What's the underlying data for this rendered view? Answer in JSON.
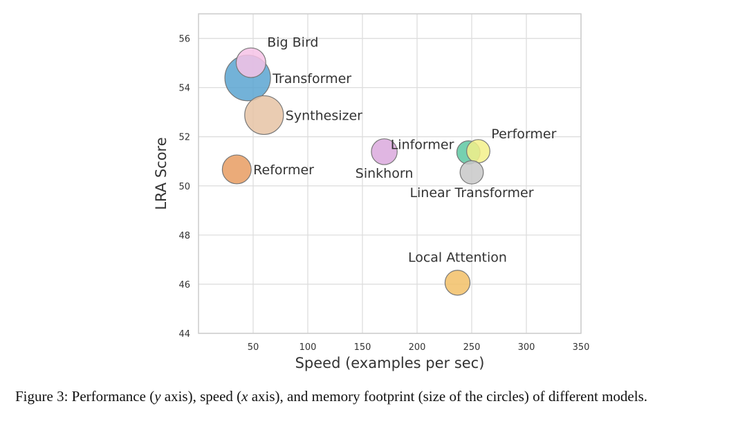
{
  "chart_data": {
    "type": "scatter",
    "title": "",
    "xlabel": "Speed (examples per sec)",
    "ylabel": "LRA Score",
    "xlim": [
      0,
      350
    ],
    "ylim": [
      44,
      57
    ],
    "xticks": [
      50,
      100,
      150,
      200,
      250,
      300,
      350
    ],
    "yticks": [
      44,
      46,
      48,
      50,
      52,
      54,
      56
    ],
    "grid": true,
    "size_meaning": "memory footprint",
    "points": [
      {
        "name": "Transformer",
        "x": 45,
        "y": 54.39,
        "size": 1.0,
        "color": "#5aa4d1",
        "label_pos": "right"
      },
      {
        "name": "Big Bird",
        "x": 48,
        "y": 55.01,
        "size": 0.42,
        "color": "#f6c2e6",
        "label_pos": "top-right"
      },
      {
        "name": "Synthesizer",
        "x": 60,
        "y": 52.88,
        "size": 0.72,
        "color": "#e6c3a5",
        "label_pos": "right"
      },
      {
        "name": "Reformer",
        "x": 35,
        "y": 50.67,
        "size": 0.4,
        "color": "#e89c62",
        "label_pos": "right"
      },
      {
        "name": "Sinkhorn",
        "x": 170,
        "y": 51.39,
        "size": 0.32,
        "color": "#dba9dd",
        "label_pos": "bottom"
      },
      {
        "name": "Linformer",
        "x": 247,
        "y": 51.36,
        "size": 0.26,
        "color": "#5ec8a2",
        "label_pos": "top-left"
      },
      {
        "name": "Performer",
        "x": 256,
        "y": 51.41,
        "size": 0.26,
        "color": "#f3f08a",
        "label_pos": "top-right"
      },
      {
        "name": "Linear Transformer",
        "x": 250,
        "y": 50.55,
        "size": 0.26,
        "color": "#c8c8c8",
        "label_pos": "bottom"
      },
      {
        "name": "Local Attention",
        "x": 237,
        "y": 46.06,
        "size": 0.3,
        "color": "#f2bf67",
        "label_pos": "top"
      }
    ]
  },
  "caption": {
    "lead": "Figure 3: Performance (",
    "y_var": "y",
    "mid1": " axis), speed (",
    "x_var": "x",
    "mid2": " axis), and memory footprint (size of the circles) of different models."
  }
}
